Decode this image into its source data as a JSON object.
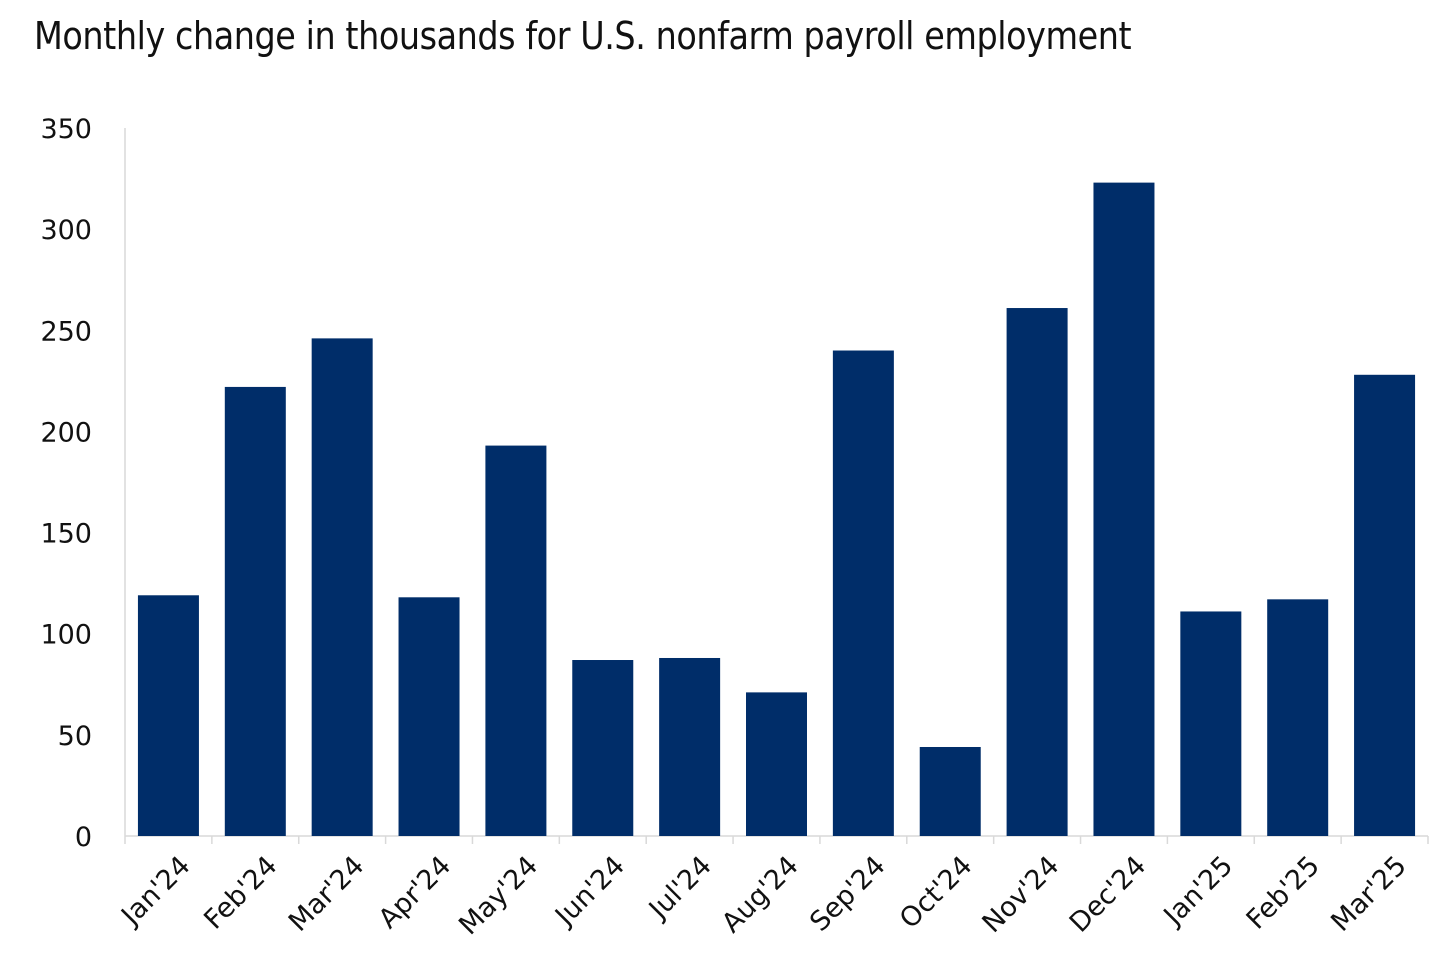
{
  "chart_data": {
    "type": "bar",
    "title": "Monthly change in thousands for U.S. nonfarm payroll employment",
    "xlabel": "",
    "ylabel": "",
    "categories": [
      "Jan'24",
      "Feb'24",
      "Mar'24",
      "Apr'24",
      "May'24",
      "Jun'24",
      "Jul'24",
      "Aug'24",
      "Sep'24",
      "Oct'24",
      "Nov'24",
      "Dec'24",
      "Jan'25",
      "Feb'25",
      "Mar'25"
    ],
    "values": [
      119,
      222,
      246,
      118,
      193,
      87,
      88,
      71,
      240,
      44,
      261,
      323,
      111,
      117,
      228
    ],
    "ylim": [
      0,
      350
    ],
    "yticks": [
      0,
      50,
      100,
      150,
      200,
      250,
      300,
      350
    ],
    "grid": false,
    "bar_color": "#002d69"
  }
}
